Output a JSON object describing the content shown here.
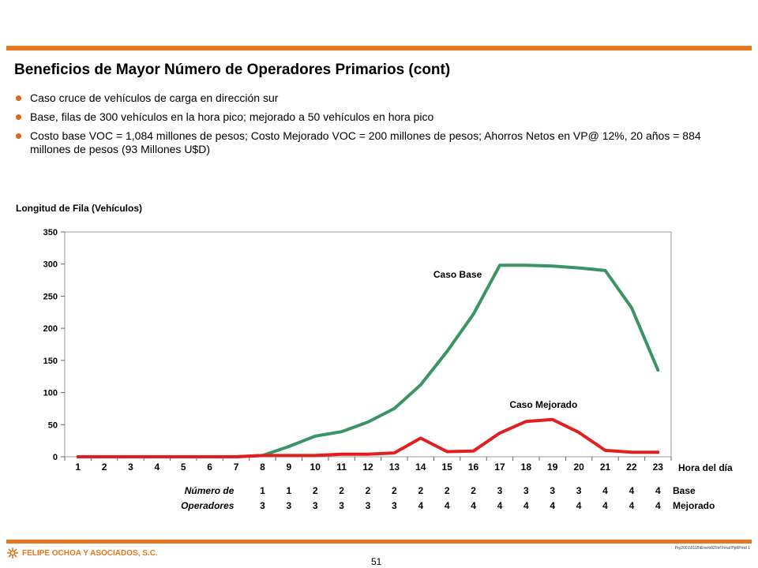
{
  "slide": {
    "title": "Beneficios de Mayor Número de Operadores Primarios (cont)",
    "bullets": [
      "Caso cruce de vehículos de carga en dirección sur",
      "Base, filas de 300 vehículos en la hora pico; mejorado a 50 vehículos en hora pico",
      "Costo base VOC = 1,084 millones de pesos; Costo Mejorado VOC = 200 millones de pesos; Ahorros Netos en VP@ 12%, 20 años = 884 millones de pesos (93 Millones U$D)"
    ],
    "accent_color": "#E8761E",
    "footer": {
      "logo_text": "FELIPE OCHOA Y ASOCIADOS, S.C.",
      "logo_icon": "sunburst-logo-icon",
      "ref": "Pry2001\\0115\\Enero02\\Inf Final Ppt\\Prod 1",
      "page": "51"
    }
  },
  "chart_data": {
    "type": "line",
    "ylabel": "Longitud de Fila (Vehículos)",
    "xlabel": "Hora del día",
    "x": [
      1,
      2,
      3,
      4,
      5,
      6,
      7,
      8,
      9,
      10,
      11,
      12,
      13,
      14,
      15,
      16,
      17,
      18,
      19,
      20,
      21,
      22,
      23
    ],
    "ylim": [
      0,
      350
    ],
    "yticks": [
      0,
      50,
      100,
      150,
      200,
      250,
      300,
      350
    ],
    "grid": false,
    "series": [
      {
        "name": "Caso Base",
        "color": "#3A9463",
        "values": [
          0,
          0,
          0,
          0,
          0,
          0,
          0,
          2,
          16,
          32,
          39,
          54,
          75,
          112,
          164,
          222,
          298,
          298,
          297,
          294,
          290,
          232,
          135
        ]
      },
      {
        "name": "Caso Mejorado",
        "color": "#E31E1E",
        "values": [
          0,
          0,
          0,
          0,
          0,
          0,
          0,
          2,
          2,
          2,
          4,
          4,
          6,
          29,
          8,
          9,
          37,
          55,
          58,
          38,
          10,
          7,
          7
        ]
      }
    ],
    "operators_table": {
      "header": [
        "Número de",
        "Operadores"
      ],
      "rows": [
        {
          "label": "Base",
          "values": [
            "1",
            "1",
            "2",
            "2",
            "2",
            "2",
            "2",
            "2",
            "2",
            "3",
            "3",
            "3",
            "3",
            "4",
            "4",
            "4"
          ]
        },
        {
          "label": "Mejorado",
          "values": [
            "3",
            "3",
            "3",
            "3",
            "3",
            "3",
            "4",
            "4",
            "4",
            "4",
            "4",
            "4",
            "4",
            "4",
            "4",
            "4"
          ]
        }
      ],
      "start_hour": 8
    }
  }
}
